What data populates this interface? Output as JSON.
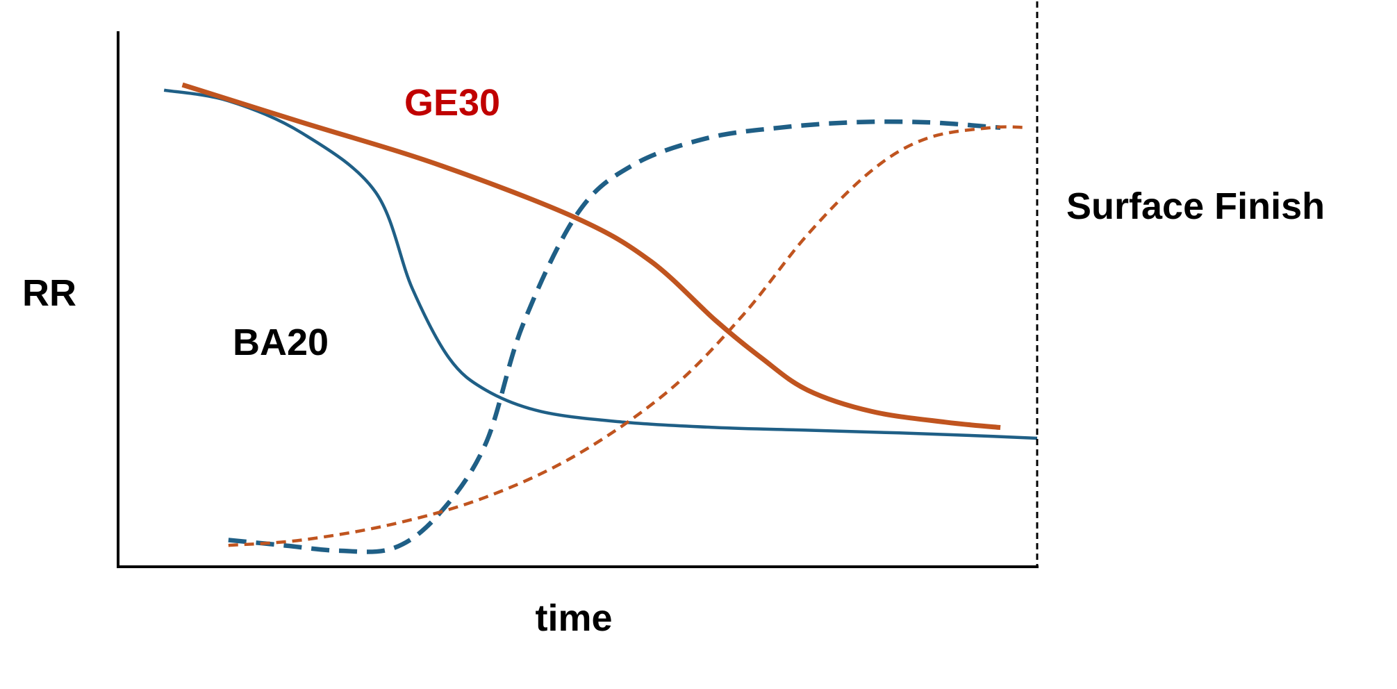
{
  "chart_data": {
    "type": "line",
    "title": "",
    "xlabel": "time",
    "ylabel": "RR",
    "right_axis_label": "Surface Finish",
    "xlim": [
      0,
      100
    ],
    "ylim": [
      0,
      100
    ],
    "grid": false,
    "colors": {
      "blue": "#1f5f86",
      "orange": "#c0541f",
      "ge30_label": "#c00000",
      "axis": "#000000"
    },
    "annotations": [
      {
        "text": "GE30",
        "color": "#c00000",
        "at": [
          31,
          86
        ]
      },
      {
        "text": "BA20",
        "color": "#000000",
        "at": [
          13,
          42
        ]
      }
    ],
    "series": [
      {
        "color": "#1f5f86",
        "dash": "solid",
        "width": 4.5,
        "x": [
          5,
          12,
          20,
          28,
          32,
          36,
          40,
          46,
          55,
          65,
          75,
          85,
          93,
          100
        ],
        "y": [
          89,
          87,
          81,
          70,
          52,
          39,
          33,
          29,
          27,
          26,
          25.5,
          25,
          24.5,
          24
        ]
      },
      {
        "color": "#c0541f",
        "dash": "solid",
        "width": 7,
        "x": [
          7,
          20,
          35,
          50,
          58,
          65,
          70,
          75,
          82,
          90,
          96
        ],
        "y": [
          90,
          83,
          75,
          65,
          57,
          46,
          39,
          33,
          29,
          27,
          26
        ]
      },
      {
        "color": "#1f5f86",
        "dash": "long-dash",
        "width": 6.5,
        "x": [
          12,
          18,
          24,
          30,
          35,
          40,
          44,
          50,
          56,
          64,
          72,
          80,
          88,
          96
        ],
        "y": [
          5,
          4,
          3,
          3.5,
          10,
          23,
          45,
          66,
          75,
          80,
          82,
          83,
          83,
          82
        ]
      },
      {
        "color": "#c0541f",
        "dash": "short-dash",
        "width": 4.5,
        "x": [
          12,
          20,
          30,
          40,
          50,
          60,
          68,
          75,
          82,
          88,
          95,
          99
        ],
        "y": [
          4,
          5,
          8,
          13,
          21,
          33,
          47,
          62,
          74,
          80,
          82,
          82
        ]
      }
    ]
  }
}
